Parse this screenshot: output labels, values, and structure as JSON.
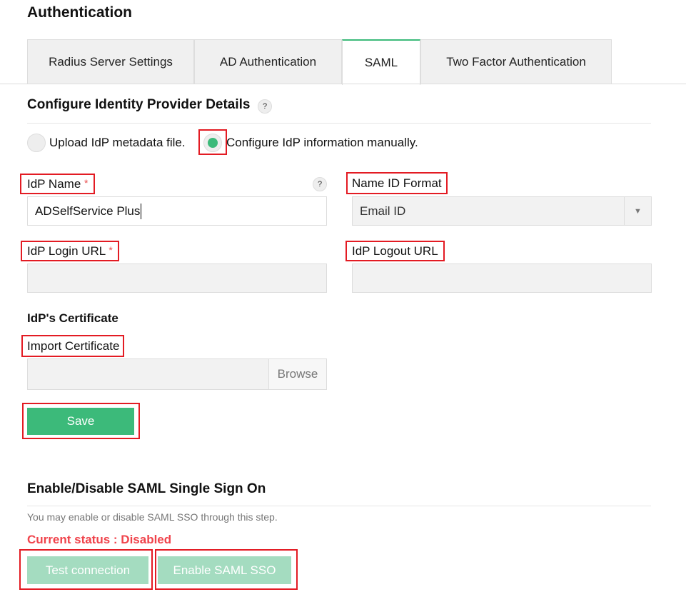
{
  "page": {
    "title": "Authentication"
  },
  "tabs": [
    {
      "label": "Radius Server Settings"
    },
    {
      "label": "AD Authentication"
    },
    {
      "label": "SAML",
      "active": true
    },
    {
      "label": "Two Factor Authentication"
    }
  ],
  "idp": {
    "heading": "Configure Identity Provider Details",
    "help": "?",
    "radio_upload": "Upload IdP metadata file.",
    "radio_manual": "Configure IdP information manually.",
    "selected": "manual",
    "idp_name_label": "IdP Name",
    "required": "*",
    "idp_name_value": "ADSelfService Plus",
    "name_id_label": "Name ID Format",
    "name_id_value": "Email ID",
    "login_url_label": "IdP Login URL",
    "login_url_value": "",
    "logout_url_label": "IdP Logout URL",
    "logout_url_value": "",
    "cert_heading": "IdP's Certificate",
    "import_label": "Import Certificate",
    "browse": "Browse",
    "save": "Save"
  },
  "sso": {
    "heading": "Enable/Disable SAML Single Sign On",
    "description": "You may enable or disable SAML SSO through this step.",
    "status": "Current status : Disabled",
    "test": "Test connection",
    "enable": "Enable SAML SSO"
  },
  "colors": {
    "accent": "#3cba7a",
    "disabled_button": "#a4dcc0",
    "status": "#f0434b",
    "annotation": "#e31b23"
  }
}
